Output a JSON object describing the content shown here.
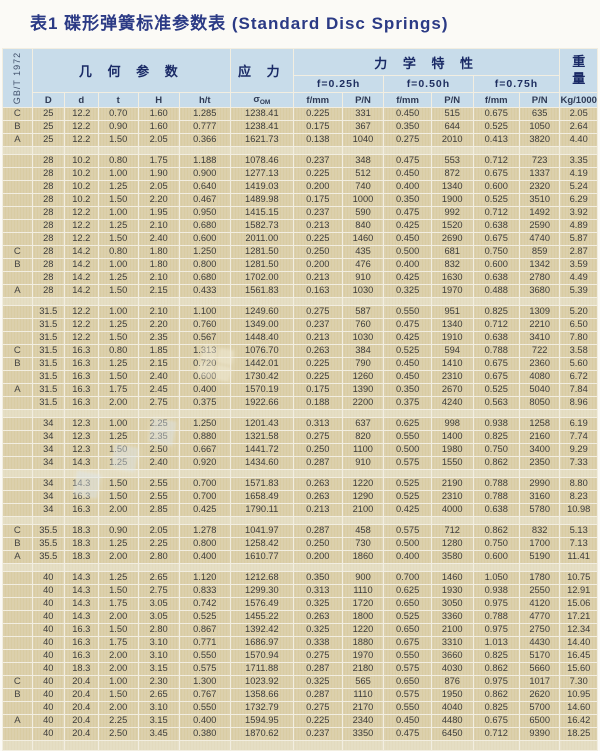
{
  "page": {
    "title": "表1 碟形弹簧标准参数表 (Standard Disc Springs)"
  },
  "standard": "GB/T 1972",
  "table": {
    "group_headers": {
      "geometry": "几 何 参 数",
      "stress": "应 力",
      "mechanical": "力 学 特 性",
      "weight_top": "重",
      "weight_bottom": "量"
    },
    "deflections": [
      "f=0.25h",
      "f=0.50h",
      "f=0.75h"
    ],
    "sigma": {
      "base": "σ",
      "sub": "OM"
    },
    "columns": [
      "D",
      "d",
      "t",
      "H",
      "h/t",
      "σ",
      "f/mm",
      "P/N",
      "f/mm",
      "P/N",
      "f/mm",
      "P/N",
      "Kg/1000"
    ],
    "rows": [
      {
        "label": "C",
        "c": [
          "25",
          "12.2",
          "0.70",
          "1.60",
          "1.285",
          "1238.41",
          "0.225",
          "331",
          "0.450",
          "515",
          "0.675",
          "635",
          "2.05"
        ]
      },
      {
        "label": "B",
        "c": [
          "25",
          "12.2",
          "0.90",
          "1.60",
          "0.777",
          "1238.41",
          "0.175",
          "367",
          "0.350",
          "644",
          "0.525",
          "1050",
          "2.64"
        ]
      },
      {
        "label": "A",
        "c": [
          "25",
          "12.2",
          "1.50",
          "2.05",
          "0.366",
          "1621.73",
          "0.138",
          "1040",
          "0.275",
          "2010",
          "0.413",
          "3820",
          "4.40"
        ]
      },
      {
        "gap": true
      },
      {
        "label": "",
        "c": [
          "28",
          "10.2",
          "0.80",
          "1.75",
          "1.188",
          "1078.46",
          "0.237",
          "348",
          "0.475",
          "553",
          "0.712",
          "723",
          "3.35"
        ]
      },
      {
        "label": "",
        "c": [
          "28",
          "10.2",
          "1.00",
          "1.90",
          "0.900",
          "1277.13",
          "0.225",
          "512",
          "0.450",
          "872",
          "0.675",
          "1337",
          "4.19"
        ]
      },
      {
        "label": "",
        "c": [
          "28",
          "10.2",
          "1.25",
          "2.05",
          "0.640",
          "1419.03",
          "0.200",
          "740",
          "0.400",
          "1340",
          "0.600",
          "2320",
          "5.24"
        ]
      },
      {
        "label": "",
        "c": [
          "28",
          "10.2",
          "1.50",
          "2.20",
          "0.467",
          "1489.98",
          "0.175",
          "1000",
          "0.350",
          "1900",
          "0.525",
          "3510",
          "6.29"
        ]
      },
      {
        "label": "",
        "c": [
          "28",
          "12.2",
          "1.00",
          "1.95",
          "0.950",
          "1415.15",
          "0.237",
          "590",
          "0.475",
          "992",
          "0.712",
          "1492",
          "3.92"
        ]
      },
      {
        "label": "",
        "c": [
          "28",
          "12.2",
          "1.25",
          "2.10",
          "0.680",
          "1582.73",
          "0.213",
          "840",
          "0.425",
          "1520",
          "0.638",
          "2590",
          "4.89"
        ]
      },
      {
        "label": "",
        "c": [
          "28",
          "12.2",
          "1.50",
          "2.40",
          "0.600",
          "2011.00",
          "0.225",
          "1460",
          "0.450",
          "2690",
          "0.675",
          "4740",
          "5.87"
        ]
      },
      {
        "label": "C",
        "c": [
          "28",
          "14.2",
          "0.80",
          "1.80",
          "1.250",
          "1281.50",
          "0.250",
          "435",
          "0.500",
          "681",
          "0.750",
          "859",
          "2.87"
        ]
      },
      {
        "label": "B",
        "c": [
          "28",
          "14.2",
          "1.00",
          "1.80",
          "0.800",
          "1281.50",
          "0.200",
          "476",
          "0.400",
          "832",
          "0.600",
          "1342",
          "3.59"
        ]
      },
      {
        "label": "",
        "c": [
          "28",
          "14.2",
          "1.25",
          "2.10",
          "0.680",
          "1702.00",
          "0.213",
          "910",
          "0.425",
          "1630",
          "0.638",
          "2780",
          "4.49"
        ]
      },
      {
        "label": "A",
        "c": [
          "28",
          "14.2",
          "1.50",
          "2.15",
          "0.433",
          "1561.83",
          "0.163",
          "1030",
          "0.325",
          "1970",
          "0.488",
          "3680",
          "5.39"
        ]
      },
      {
        "gap": true
      },
      {
        "label": "",
        "c": [
          "31.5",
          "12.2",
          "1.00",
          "2.10",
          "1.100",
          "1249.60",
          "0.275",
          "587",
          "0.550",
          "951",
          "0.825",
          "1309",
          "5.20"
        ]
      },
      {
        "label": "",
        "c": [
          "31.5",
          "12.2",
          "1.25",
          "2.20",
          "0.760",
          "1349.00",
          "0.237",
          "760",
          "0.475",
          "1340",
          "0.712",
          "2210",
          "6.50"
        ]
      },
      {
        "label": "",
        "c": [
          "31.5",
          "12.2",
          "1.50",
          "2.35",
          "0.567",
          "1448.40",
          "0.213",
          "1030",
          "0.425",
          "1910",
          "0.638",
          "3410",
          "7.80"
        ]
      },
      {
        "label": "C",
        "c": [
          "31.5",
          "16.3",
          "0.80",
          "1.85",
          "1.313",
          "1076.70",
          "0.263",
          "384",
          "0.525",
          "594",
          "0.788",
          "722",
          "3.58"
        ]
      },
      {
        "label": "B",
        "c": [
          "31.5",
          "16.3",
          "1.25",
          "2.15",
          "0.720",
          "1442.01",
          "0.225",
          "790",
          "0.450",
          "1410",
          "0.675",
          "2360",
          "5.60"
        ]
      },
      {
        "label": "",
        "c": [
          "31.5",
          "16.3",
          "1.50",
          "2.40",
          "0.600",
          "1730.42",
          "0.225",
          "1260",
          "0.450",
          "2310",
          "0.675",
          "4080",
          "6.72"
        ]
      },
      {
        "label": "A",
        "c": [
          "31.5",
          "16.3",
          "1.75",
          "2.45",
          "0.400",
          "1570.19",
          "0.175",
          "1390",
          "0.350",
          "2670",
          "0.525",
          "5040",
          "7.84"
        ]
      },
      {
        "label": "",
        "c": [
          "31.5",
          "16.3",
          "2.00",
          "2.75",
          "0.375",
          "1922.66",
          "0.188",
          "2200",
          "0.375",
          "4240",
          "0.563",
          "8050",
          "8.96"
        ]
      },
      {
        "gap": true
      },
      {
        "label": "",
        "c": [
          "34",
          "12.3",
          "1.00",
          "2.25",
          "1.250",
          "1201.43",
          "0.313",
          "637",
          "0.625",
          "998",
          "0.938",
          "1258",
          "6.19"
        ]
      },
      {
        "label": "",
        "c": [
          "34",
          "12.3",
          "1.25",
          "2.35",
          "0.880",
          "1321.58",
          "0.275",
          "820",
          "0.550",
          "1400",
          "0.825",
          "2160",
          "7.74"
        ]
      },
      {
        "label": "",
        "c": [
          "34",
          "12.3",
          "1.50",
          "2.50",
          "0.667",
          "1441.72",
          "0.250",
          "1100",
          "0.500",
          "1980",
          "0.750",
          "3400",
          "9.29"
        ]
      },
      {
        "label": "",
        "c": [
          "34",
          "14.3",
          "1.25",
          "2.40",
          "0.920",
          "1434.60",
          "0.287",
          "910",
          "0.575",
          "1550",
          "0.862",
          "2350",
          "7.33"
        ]
      },
      {
        "gap": true
      },
      {
        "label": "",
        "c": [
          "34",
          "14.3",
          "1.50",
          "2.55",
          "0.700",
          "1571.83",
          "0.263",
          "1220",
          "0.525",
          "2190",
          "0.788",
          "2990",
          "8.80"
        ]
      },
      {
        "label": "",
        "c": [
          "34",
          "16.3",
          "1.50",
          "2.55",
          "0.700",
          "1658.49",
          "0.263",
          "1290",
          "0.525",
          "2310",
          "0.788",
          "3160",
          "8.23"
        ]
      },
      {
        "label": "",
        "c": [
          "34",
          "16.3",
          "2.00",
          "2.85",
          "0.425",
          "1790.11",
          "0.213",
          "2100",
          "0.425",
          "4000",
          "0.638",
          "5780",
          "10.98"
        ]
      },
      {
        "gap": true
      },
      {
        "label": "C",
        "c": [
          "35.5",
          "18.3",
          "0.90",
          "2.05",
          "1.278",
          "1041.97",
          "0.287",
          "458",
          "0.575",
          "712",
          "0.862",
          "832",
          "5.13"
        ]
      },
      {
        "label": "B",
        "c": [
          "35.5",
          "18.3",
          "1.25",
          "2.25",
          "0.800",
          "1258.42",
          "0.250",
          "730",
          "0.500",
          "1280",
          "0.750",
          "1700",
          "7.13"
        ]
      },
      {
        "label": "A",
        "c": [
          "35.5",
          "18.3",
          "2.00",
          "2.80",
          "0.400",
          "1610.77",
          "0.200",
          "1860",
          "0.400",
          "3580",
          "0.600",
          "5190",
          "11.41"
        ]
      },
      {
        "gap": true
      },
      {
        "label": "",
        "c": [
          "40",
          "14.3",
          "1.25",
          "2.65",
          "1.120",
          "1212.68",
          "0.350",
          "900",
          "0.700",
          "1460",
          "1.050",
          "1780",
          "10.75"
        ]
      },
      {
        "label": "",
        "c": [
          "40",
          "14.3",
          "1.50",
          "2.75",
          "0.833",
          "1299.30",
          "0.313",
          "1110",
          "0.625",
          "1930",
          "0.938",
          "2550",
          "12.91"
        ]
      },
      {
        "label": "",
        "c": [
          "40",
          "14.3",
          "1.75",
          "3.05",
          "0.742",
          "1576.49",
          "0.325",
          "1720",
          "0.650",
          "3050",
          "0.975",
          "4120",
          "15.06"
        ]
      },
      {
        "label": "",
        "c": [
          "40",
          "14.3",
          "2.00",
          "3.05",
          "0.525",
          "1455.22",
          "0.263",
          "1800",
          "0.525",
          "3360",
          "0.788",
          "4770",
          "17.21"
        ]
      },
      {
        "label": "",
        "c": [
          "40",
          "16.3",
          "1.50",
          "2.80",
          "0.867",
          "1392.42",
          "0.325",
          "1220",
          "0.650",
          "2100",
          "0.975",
          "2750",
          "12.34"
        ]
      },
      {
        "label": "",
        "c": [
          "40",
          "16.3",
          "1.75",
          "3.10",
          "0.771",
          "1686.97",
          "0.338",
          "1880",
          "0.675",
          "3310",
          "1.013",
          "4430",
          "14.40"
        ]
      },
      {
        "label": "",
        "c": [
          "40",
          "16.3",
          "2.00",
          "3.10",
          "0.550",
          "1570.94",
          "0.275",
          "1970",
          "0.550",
          "3660",
          "0.825",
          "5170",
          "16.45"
        ]
      },
      {
        "label": "",
        "c": [
          "40",
          "18.3",
          "2.00",
          "3.15",
          "0.575",
          "1711.88",
          "0.287",
          "2180",
          "0.575",
          "4030",
          "0.862",
          "5660",
          "15.60"
        ]
      },
      {
        "label": "C",
        "c": [
          "40",
          "20.4",
          "1.00",
          "2.30",
          "1.300",
          "1023.92",
          "0.325",
          "565",
          "0.650",
          "876",
          "0.975",
          "1017",
          "7.30"
        ]
      },
      {
        "label": "B",
        "c": [
          "40",
          "20.4",
          "1.50",
          "2.65",
          "0.767",
          "1358.66",
          "0.287",
          "1110",
          "0.575",
          "1950",
          "0.862",
          "2620",
          "10.95"
        ]
      },
      {
        "label": "",
        "c": [
          "40",
          "20.4",
          "2.00",
          "3.10",
          "0.550",
          "1732.79",
          "0.275",
          "2170",
          "0.550",
          "4040",
          "0.825",
          "5700",
          "14.60"
        ]
      },
      {
        "label": "A",
        "c": [
          "40",
          "20.4",
          "2.25",
          "3.15",
          "0.400",
          "1594.95",
          "0.225",
          "2340",
          "0.450",
          "4480",
          "0.675",
          "6500",
          "16.42"
        ]
      },
      {
        "label": "",
        "c": [
          "40",
          "20.4",
          "2.50",
          "3.45",
          "0.380",
          "1870.62",
          "0.237",
          "3350",
          "0.475",
          "6450",
          "0.712",
          "9390",
          "18.25"
        ]
      },
      {
        "gap": true,
        "end": true
      }
    ]
  }
}
